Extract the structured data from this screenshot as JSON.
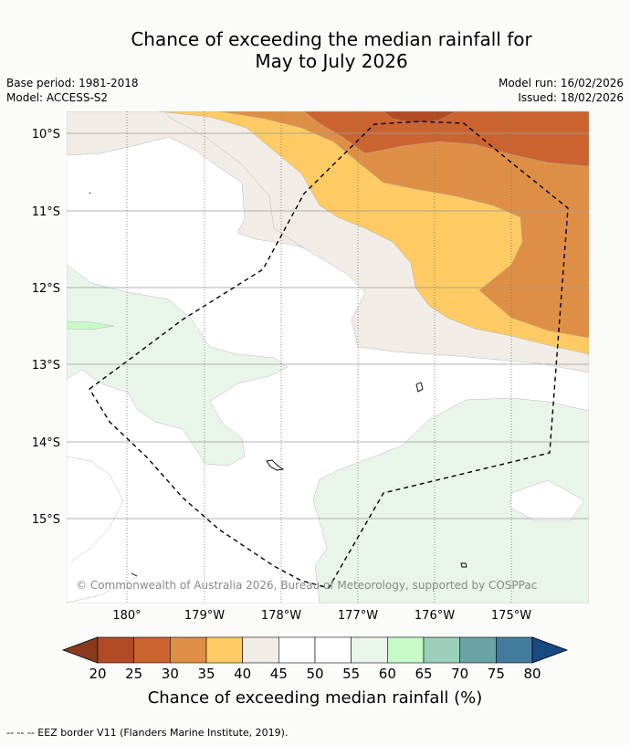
{
  "title": {
    "line1": "Chance of exceeding the median rainfall for",
    "line2": "May to July 2026"
  },
  "meta": {
    "base_period": "Base period: 1981-2018",
    "model": "Model: ACCESS-S2",
    "model_run": "Model run: 16/02/2026",
    "issued": "Issued: 18/02/2026"
  },
  "map": {
    "copyright": "© Commonwealth of Australia 2026, Bureau of Meteorology, supported by COSPPac",
    "lon_labels": [
      "180°",
      "179°W",
      "178°W",
      "177°W",
      "176°W",
      "175°W"
    ],
    "lat_labels": [
      "10°S",
      "11°S",
      "12°S",
      "13°S",
      "14°S",
      "15°S"
    ]
  },
  "colorbar": {
    "title": "Chance of exceeding median rainfall (%)",
    "ticks": [
      "20",
      "25",
      "30",
      "35",
      "40",
      "45",
      "50",
      "55",
      "60",
      "65",
      "70",
      "75",
      "80"
    ],
    "colors": [
      "#8a3a1e",
      "#b24a26",
      "#cb6330",
      "#df8f45",
      "#fdca64",
      "#f1ece6",
      "#ffffff",
      "#ffffff",
      "#eaf5ea",
      "#c8fac8",
      "#9bcfba",
      "#6aa3a6",
      "#427b9b",
      "#174a80"
    ]
  },
  "footer": {
    "legend": "--  --  -- EEZ border V11 (Flanders Marine Institute, 2019)."
  }
}
